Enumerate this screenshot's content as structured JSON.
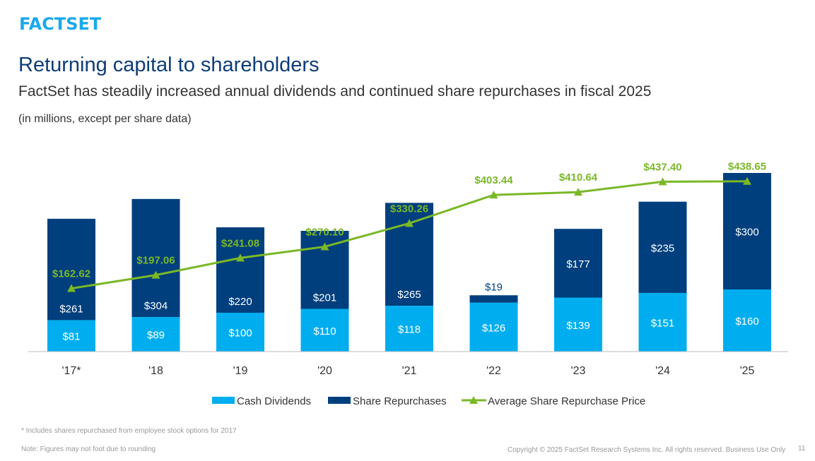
{
  "header": {
    "logo": "FACTSET",
    "title": "Returning capital to shareholders",
    "subtitle": "FactSet has steadily increased annual dividends and continued share repurchases in fiscal 2025",
    "units": "(in millions, except per share data)"
  },
  "chart_data": {
    "type": "bar",
    "stacked": true,
    "categories": [
      "'17*",
      "'18",
      "'19",
      "'20",
      "'21",
      "'22",
      "'23",
      "'24",
      "'25"
    ],
    "series": [
      {
        "name": "Cash Dividends",
        "color": "#00aeef",
        "values": [
          81,
          89,
          100,
          110,
          118,
          126,
          139,
          151,
          160
        ],
        "labels": [
          "$81",
          "$89",
          "$100",
          "$110",
          "$118",
          "$126",
          "$139",
          "$151",
          "$160"
        ]
      },
      {
        "name": "Share Repurchases",
        "color": "#003f7d",
        "values": [
          261,
          304,
          220,
          201,
          265,
          19,
          177,
          235,
          300
        ],
        "labels": [
          "$261",
          "$304",
          "$220",
          "$201",
          "$265",
          "$19",
          "$177",
          "$235",
          "$300"
        ]
      },
      {
        "name": "Average Share Repurchase Price",
        "type": "line",
        "color": "#7ab827",
        "values": [
          162.62,
          197.06,
          241.08,
          270.1,
          330.26,
          403.44,
          410.64,
          437.4,
          438.65
        ],
        "labels": [
          "$162.62",
          "$197.06",
          "$241.08",
          "$270.10",
          "$330.26",
          "$403.44",
          "$410.64",
          "$437.40",
          "$438.65"
        ]
      }
    ],
    "legend_position": "bottom",
    "grid": false
  },
  "footer": {
    "footnote": "* Includes shares repurchased from employee stock options for 2017",
    "note": "Note: Figures may not foot due to rounding",
    "copyright": "Copyright © 2025 FactSet Research Systems Inc. All rights reserved. Business Use Only",
    "page": "11"
  }
}
